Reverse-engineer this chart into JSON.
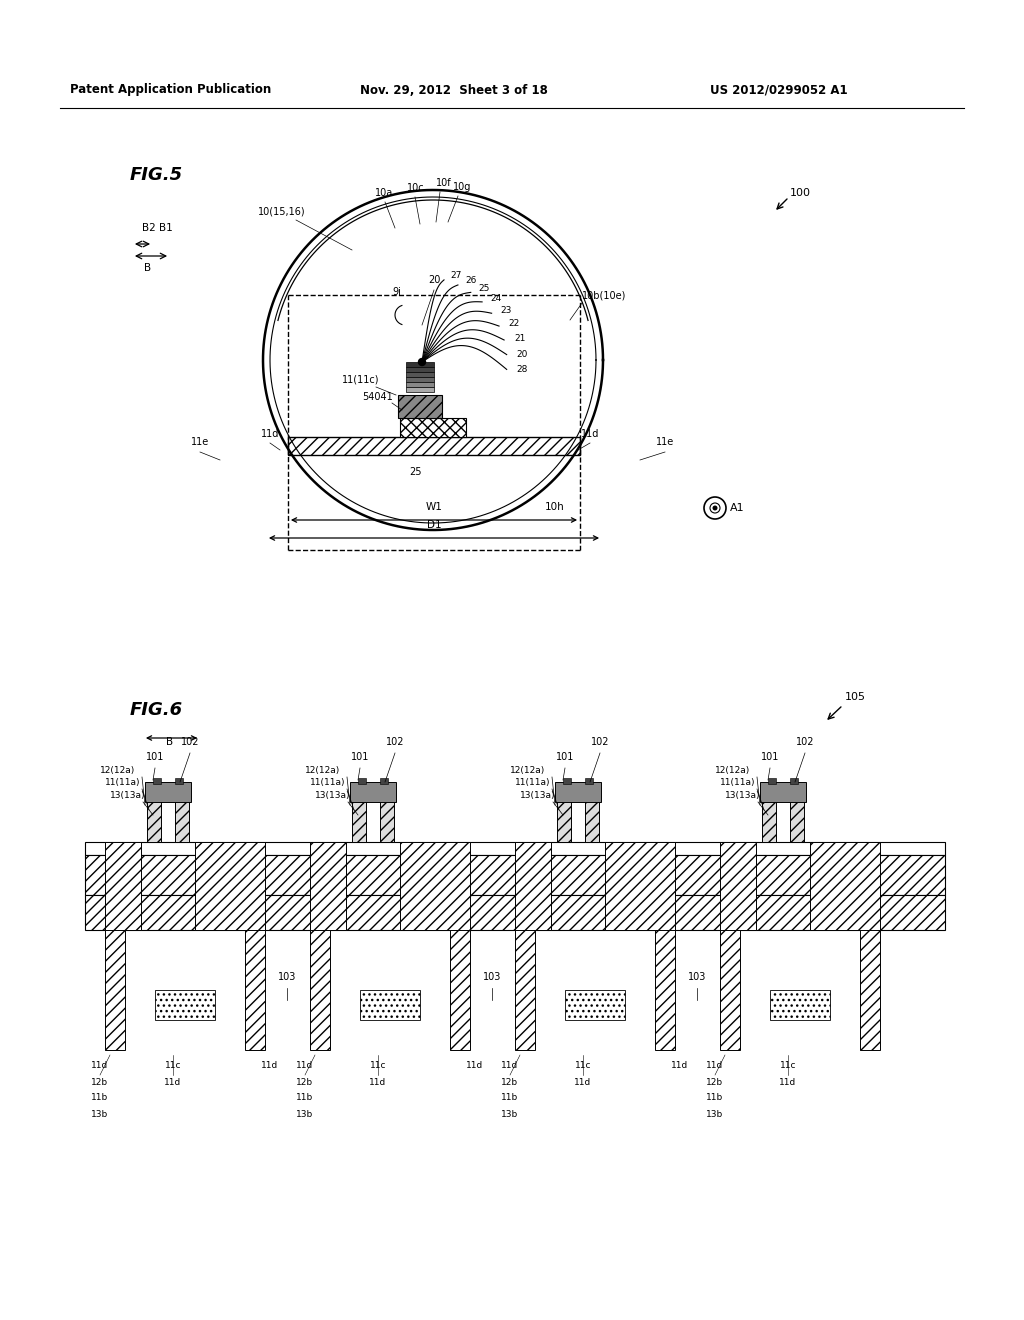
{
  "bg": "#ffffff",
  "header_left": "Patent Application Publication",
  "header_mid": "Nov. 29, 2012  Sheet 3 of 18",
  "header_right": "US 2012/0299052 A1",
  "fig5_title": "FIG.5",
  "fig6_title": "FIG.6",
  "ref100": "100",
  "ref105": "105"
}
